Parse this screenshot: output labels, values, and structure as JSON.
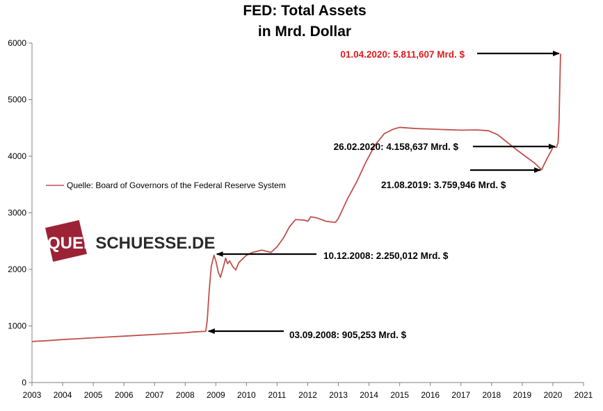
{
  "chart_data": {
    "type": "line",
    "title_line1": "FED: Total Assets",
    "title_line2": "in Mrd. Dollar",
    "xlabel": "",
    "ylabel": "",
    "ylim": [
      0,
      6000
    ],
    "xlim": [
      2003,
      2021
    ],
    "y_ticks": [
      0,
      1000,
      2000,
      3000,
      4000,
      5000,
      6000
    ],
    "x_ticks": [
      2003,
      2004,
      2005,
      2006,
      2007,
      2008,
      2009,
      2010,
      2011,
      2012,
      2013,
      2014,
      2015,
      2016,
      2017,
      2018,
      2019,
      2020,
      2021
    ],
    "grid": false,
    "legend": "left-middle",
    "series": [
      {
        "name": "Quelle: Board of Governors of the Federal Reserve System",
        "color": "#c0504d",
        "points": [
          [
            2003.0,
            725
          ],
          [
            2003.5,
            740
          ],
          [
            2004.0,
            760
          ],
          [
            2004.5,
            775
          ],
          [
            2005.0,
            790
          ],
          [
            2005.5,
            805
          ],
          [
            2006.0,
            820
          ],
          [
            2006.5,
            835
          ],
          [
            2007.0,
            850
          ],
          [
            2007.5,
            865
          ],
          [
            2008.0,
            880
          ],
          [
            2008.3,
            895
          ],
          [
            2008.67,
            905
          ],
          [
            2008.72,
            1100
          ],
          [
            2008.78,
            1600
          ],
          [
            2008.85,
            2050
          ],
          [
            2008.94,
            2250
          ],
          [
            2009.0,
            2150
          ],
          [
            2009.08,
            1950
          ],
          [
            2009.15,
            1860
          ],
          [
            2009.25,
            2050
          ],
          [
            2009.32,
            2200
          ],
          [
            2009.38,
            2100
          ],
          [
            2009.45,
            2150
          ],
          [
            2009.55,
            2050
          ],
          [
            2009.65,
            1990
          ],
          [
            2009.75,
            2120
          ],
          [
            2009.9,
            2200
          ],
          [
            2010.0,
            2250
          ],
          [
            2010.2,
            2300
          ],
          [
            2010.5,
            2340
          ],
          [
            2010.8,
            2300
          ],
          [
            2011.0,
            2400
          ],
          [
            2011.2,
            2550
          ],
          [
            2011.4,
            2750
          ],
          [
            2011.6,
            2880
          ],
          [
            2011.9,
            2870
          ],
          [
            2012.0,
            2850
          ],
          [
            2012.1,
            2930
          ],
          [
            2012.3,
            2910
          ],
          [
            2012.6,
            2850
          ],
          [
            2012.9,
            2830
          ],
          [
            2013.0,
            2900
          ],
          [
            2013.3,
            3250
          ],
          [
            2013.6,
            3550
          ],
          [
            2013.9,
            3900
          ],
          [
            2014.2,
            4200
          ],
          [
            2014.5,
            4400
          ],
          [
            2014.8,
            4480
          ],
          [
            2015.0,
            4510
          ],
          [
            2015.5,
            4490
          ],
          [
            2016.0,
            4480
          ],
          [
            2016.5,
            4470
          ],
          [
            2017.0,
            4460
          ],
          [
            2017.5,
            4465
          ],
          [
            2017.9,
            4450
          ],
          [
            2018.2,
            4380
          ],
          [
            2018.5,
            4250
          ],
          [
            2018.8,
            4120
          ],
          [
            2019.1,
            4000
          ],
          [
            2019.4,
            3880
          ],
          [
            2019.63,
            3760
          ],
          [
            2019.8,
            3950
          ],
          [
            2019.95,
            4100
          ],
          [
            2020.0,
            4160
          ],
          [
            2020.12,
            4158
          ],
          [
            2020.17,
            4240
          ],
          [
            2020.2,
            4600
          ],
          [
            2020.22,
            5100
          ],
          [
            2020.25,
            5811
          ]
        ]
      }
    ],
    "annotations": [
      {
        "text": "01.04.2020: 5.811,607 Mrd. $",
        "color": "#e0191e",
        "x": 2020.25,
        "y": 5811
      },
      {
        "text": "26.02.2020: 4.158,637 Mrd. $",
        "color": "#000000",
        "x": 2020.16,
        "y": 4158
      },
      {
        "text": "21.08.2019: 3.759,946 Mrd. $",
        "color": "#000000",
        "x": 2019.64,
        "y": 3760
      },
      {
        "text": "10.12.2008: 2.250,012 Mrd. $",
        "color": "#000000",
        "x": 2008.94,
        "y": 2250
      },
      {
        "text": "03.09.2008: 905,253 Mrd. $",
        "color": "#000000",
        "x": 2008.67,
        "y": 905
      }
    ]
  },
  "logo": {
    "text": "QUERSCHUESSE.DE",
    "mark_color": "#9b2335"
  }
}
